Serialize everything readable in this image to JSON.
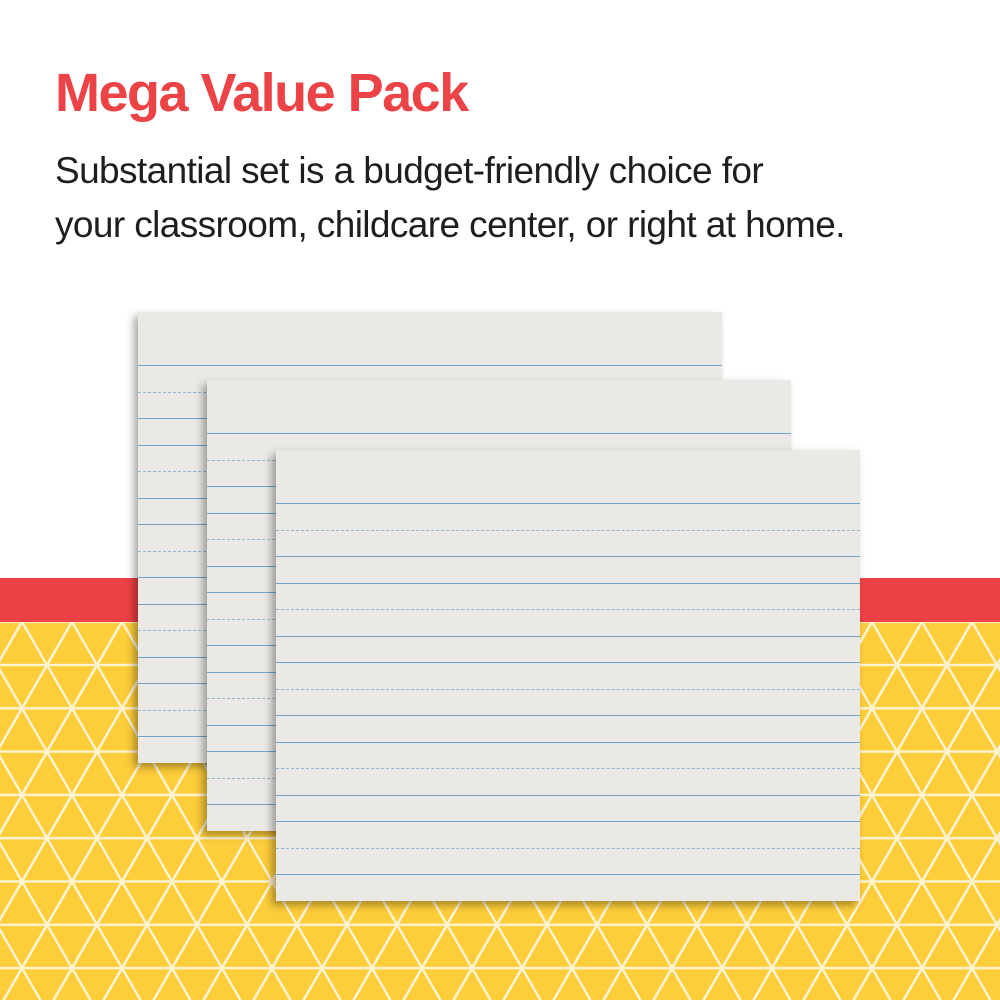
{
  "headline": "Mega Value Pack",
  "description_line1": "Substantial set is a budget-friendly choice for",
  "description_line2": "your classroom, childcare center, or right at home.",
  "colors": {
    "headline": "#ec4346",
    "band": "#ee4146",
    "pattern_background": "#fdcd3a",
    "paper": "#ebe9e5",
    "ruled_line": "#6fa6c8"
  },
  "product": {
    "item": "ruled writing paper sheets",
    "sheet_count_shown": 3,
    "ruling_pattern": [
      "solid",
      "dashed",
      "solid"
    ]
  }
}
